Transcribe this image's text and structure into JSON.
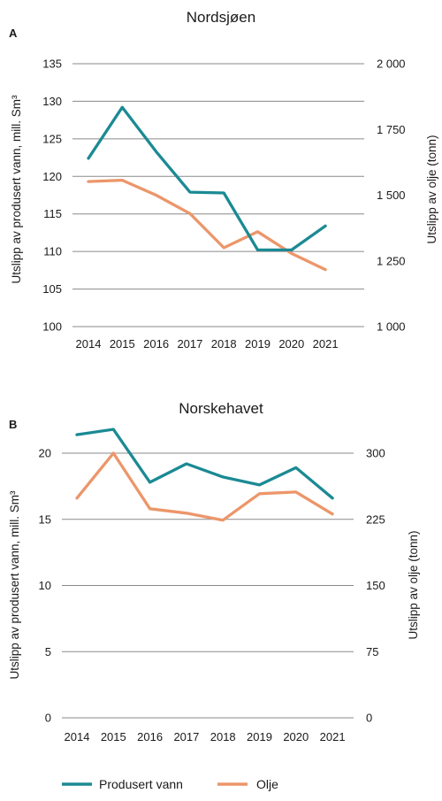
{
  "colors": {
    "water": "#1b8a94",
    "oil": "#ec966a",
    "grid": "#8a8a8a"
  },
  "legend": {
    "water_label": "Produsert vann",
    "oil_label": "Olje"
  },
  "chart_data": [
    {
      "type": "line",
      "panel_letter": "A",
      "title": "Nordsjøen",
      "x": [
        "2014",
        "2015",
        "2016",
        "2017",
        "2018",
        "2019",
        "2020",
        "2021"
      ],
      "ylabel_left": "Utslipp av produsert vann, mill. Sm³",
      "ylabel_right": "Utslipp av olje (tonn)",
      "left_axis": {
        "min": 100,
        "max": 135,
        "ticks": [
          100,
          105,
          110,
          115,
          120,
          125,
          130,
          135
        ],
        "tick_labels": [
          "100",
          "105",
          "110",
          "115",
          "120",
          "125",
          "130",
          "135"
        ]
      },
      "right_axis": {
        "min": 1000,
        "max": 2000,
        "ticks": [
          1000,
          1250,
          1500,
          1750,
          2000
        ],
        "tick_labels": [
          "1 000",
          "1 250",
          "1 500",
          "1 750",
          "2 000"
        ]
      },
      "grid": true,
      "series": [
        {
          "name": "Produsert vann",
          "axis": "left",
          "color_key": "water",
          "values": [
            122.4,
            129.2,
            123.3,
            117.9,
            117.8,
            110.2,
            110.2,
            113.4
          ]
        },
        {
          "name": "Olje",
          "axis": "right",
          "color_key": "oil",
          "values": [
            1552,
            1557,
            1500,
            1430,
            1300,
            1361,
            1278,
            1217
          ]
        }
      ]
    },
    {
      "type": "line",
      "panel_letter": "B",
      "title": "Norskehavet",
      "x": [
        "2014",
        "2015",
        "2016",
        "2017",
        "2018",
        "2019",
        "2020",
        "2021"
      ],
      "ylabel_left": "Utslipp av produsert vann, mill. Sm³",
      "ylabel_right": "Utslipp av olje (tonn)",
      "left_axis": {
        "min": 0,
        "max": 20,
        "ticks": [
          0,
          5,
          10,
          15,
          20
        ],
        "tick_labels": [
          "0",
          "5",
          "10",
          "15",
          "20"
        ]
      },
      "right_axis": {
        "min": 0,
        "max": 300,
        "ticks": [
          0,
          75,
          150,
          225,
          300
        ],
        "tick_labels": [
          "0",
          "75",
          "150",
          "225",
          "300"
        ]
      },
      "grid": true,
      "series": [
        {
          "name": "Produsert vann",
          "axis": "left",
          "color_key": "water",
          "values": [
            21.4,
            21.8,
            17.8,
            19.2,
            18.2,
            17.6,
            18.9,
            16.6
          ]
        },
        {
          "name": "Olje",
          "axis": "right",
          "color_key": "oil",
          "values": [
            249,
            300,
            237,
            232,
            224,
            254,
            256,
            231
          ]
        }
      ]
    }
  ]
}
